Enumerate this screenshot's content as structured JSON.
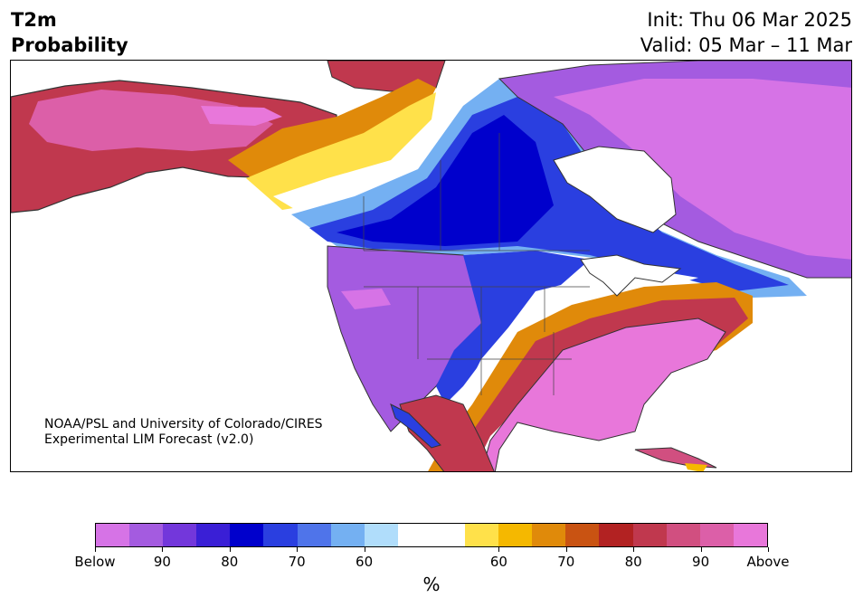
{
  "title": {
    "left_line1": "T2m",
    "left_line2": "Probability",
    "init": "Init: Thu 06 Mar 2025",
    "valid": "Valid: 05 Mar – 11 Mar"
  },
  "credit": {
    "line1": "NOAA/PSL and University of Colorado/CIRES",
    "line2": "Experimental LIM Forecast (v2.0)"
  },
  "colorbar": {
    "colors": [
      "#d673e6",
      "#a45be0",
      "#7337db",
      "#3a1fd6",
      "#0000cc",
      "#2a3fe0",
      "#4f74ea",
      "#74b0f2",
      "#b0ddfb",
      "#ffffff",
      "#ffffff",
      "#ffe14a",
      "#f5b800",
      "#e08a0a",
      "#c95312",
      "#b22222",
      "#c0384e",
      "#d14f80",
      "#dc5fa8",
      "#e877da"
    ],
    "tick_labels": [
      "Below",
      "90",
      "80",
      "70",
      "60",
      "60",
      "70",
      "80",
      "90",
      "Above"
    ],
    "unit": "%"
  },
  "map": {
    "colors": {
      "below_strong": "#d673e6",
      "below_90": "#a45be0",
      "below_85": "#7337db",
      "below_80": "#3a1fd6",
      "below_75": "#0000cc",
      "below_70": "#2a3fe0",
      "below_65": "#4f74ea",
      "below_60": "#74b0f2",
      "below_55": "#b0ddfb",
      "neutral": "#ffffff",
      "above_55": "#ffe14a",
      "above_60": "#f5b800",
      "above_65": "#e08a0a",
      "above_70": "#c95312",
      "above_75": "#b22222",
      "above_80": "#c0384e",
      "above_85": "#d14f80",
      "above_90": "#dc5fa8",
      "above_strong": "#e877da",
      "coastline": "#333333"
    }
  }
}
